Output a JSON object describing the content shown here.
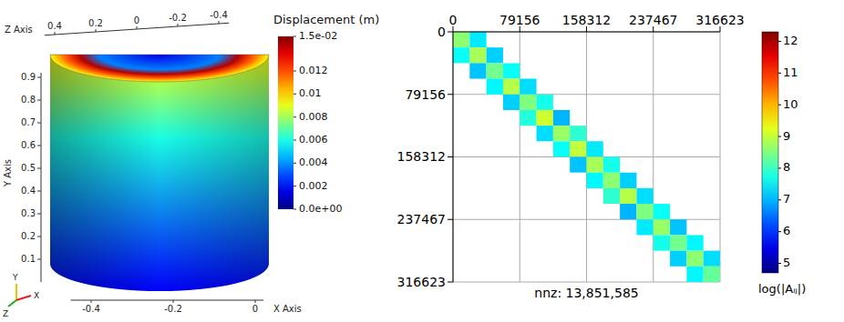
{
  "chart_data": [
    {
      "type": "scene3d",
      "colorbar": {
        "title": "Displacement (m)",
        "range": [
          0,
          0.015
        ],
        "ticks": [
          {
            "value": 0.015,
            "label": "1.5e-02"
          },
          0.012,
          0.01,
          0.008,
          0.006,
          0.004,
          0.002,
          {
            "value": 0,
            "label": "0.0e+00"
          }
        ]
      },
      "axes": [
        {
          "label": "X Axis",
          "ticks": [
            -0.4,
            -0.2,
            0
          ]
        },
        {
          "label": "Y Axis",
          "ticks": [
            0.1,
            0.2,
            0.3,
            0.4,
            0.5,
            0.6,
            0.7,
            0.8,
            0.9
          ]
        },
        {
          "label": "Z Axis",
          "ticks": [
            0.4,
            0.2,
            0,
            -0.2,
            -0.4
          ]
        }
      ],
      "triad": [
        "Y",
        "Z",
        "X"
      ]
    },
    {
      "type": "heatmap",
      "x_edges": [
        0,
        19789,
        39578,
        59367,
        79156,
        98945,
        118734,
        138523,
        158312,
        178101,
        197890,
        217679,
        237467,
        257256,
        277045,
        296834,
        316623
      ],
      "y_edges": [
        0,
        19789,
        39578,
        59367,
        79156,
        98945,
        118734,
        138523,
        158312,
        178101,
        197890,
        217679,
        237467,
        257256,
        277045,
        296834,
        316623
      ],
      "cells": [
        [
          8.6,
          7.4,
          null,
          null,
          null,
          null,
          null,
          null,
          null,
          null,
          null,
          null,
          null,
          null,
          null,
          null
        ],
        [
          7.6,
          8.8,
          7.2,
          null,
          null,
          null,
          null,
          null,
          null,
          null,
          null,
          null,
          null,
          null,
          null,
          null
        ],
        [
          null,
          7.1,
          8.4,
          7.6,
          null,
          null,
          null,
          null,
          null,
          null,
          null,
          null,
          null,
          null,
          null,
          null
        ],
        [
          null,
          null,
          7.5,
          8.9,
          7.3,
          null,
          null,
          null,
          null,
          null,
          null,
          null,
          null,
          null,
          null,
          null
        ],
        [
          null,
          null,
          null,
          7.2,
          8.5,
          7.7,
          null,
          null,
          null,
          null,
          null,
          null,
          null,
          null,
          null,
          null
        ],
        [
          null,
          null,
          null,
          null,
          7.8,
          9.1,
          7.0,
          null,
          null,
          null,
          null,
          null,
          null,
          null,
          null,
          null
        ],
        [
          null,
          null,
          null,
          null,
          null,
          7.3,
          8.7,
          7.9,
          null,
          null,
          null,
          null,
          null,
          null,
          null,
          null
        ],
        [
          null,
          null,
          null,
          null,
          null,
          null,
          7.6,
          9.0,
          7.4,
          null,
          null,
          null,
          null,
          null,
          null,
          null
        ],
        [
          null,
          null,
          null,
          null,
          null,
          null,
          null,
          7.1,
          8.8,
          7.7,
          null,
          null,
          null,
          null,
          null,
          null
        ],
        [
          null,
          null,
          null,
          null,
          null,
          null,
          null,
          null,
          7.5,
          8.6,
          7.2,
          null,
          null,
          null,
          null,
          null
        ],
        [
          null,
          null,
          null,
          null,
          null,
          null,
          null,
          null,
          null,
          7.9,
          8.9,
          7.3,
          null,
          null,
          null,
          null
        ],
        [
          null,
          null,
          null,
          null,
          null,
          null,
          null,
          null,
          null,
          null,
          7.0,
          8.5,
          7.6,
          null,
          null,
          null
        ],
        [
          null,
          null,
          null,
          null,
          null,
          null,
          null,
          null,
          null,
          null,
          null,
          7.4,
          8.7,
          7.1,
          null,
          null
        ],
        [
          null,
          null,
          null,
          null,
          null,
          null,
          null,
          null,
          null,
          null,
          null,
          null,
          7.7,
          8.4,
          7.5,
          null
        ],
        [
          null,
          null,
          null,
          null,
          null,
          null,
          null,
          null,
          null,
          null,
          null,
          null,
          null,
          7.2,
          8.6,
          7.3
        ],
        [
          null,
          null,
          null,
          null,
          null,
          null,
          null,
          null,
          null,
          null,
          null,
          null,
          null,
          null,
          7.5,
          8.3
        ]
      ],
      "xlim": [
        0,
        316623
      ],
      "ylim": [
        0,
        316623
      ],
      "xticks": [
        0,
        79156,
        158312,
        237467,
        316623
      ],
      "yticks": [
        0,
        79156,
        158312,
        237467,
        316623
      ],
      "grid": true,
      "annotation": "nnz: 13,851,585",
      "colorbar": {
        "label": "log(|Aᵢⱼ|)",
        "range": [
          4.7,
          12.3
        ],
        "ticks": [
          5,
          6,
          7,
          8,
          9,
          10,
          11,
          12
        ]
      }
    }
  ]
}
